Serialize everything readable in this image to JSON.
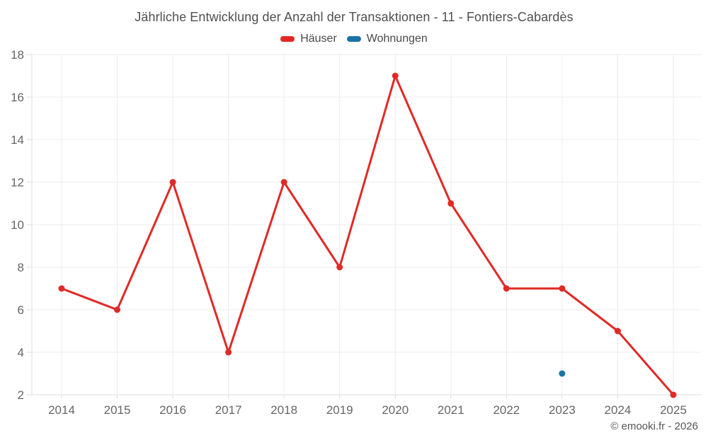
{
  "title": "Jährliche Entwicklung der Anzahl der Transaktionen - 11 - Fontiers-Cabardès",
  "legend": [
    {
      "label": "Häuser",
      "color": "#e02a26"
    },
    {
      "label": "Wohnungen",
      "color": "#1a73a5"
    }
  ],
  "footer": {
    "copyright": "© emooki.fr - 2026"
  },
  "colors": {
    "grid": "#ececec",
    "axis": "#dddddd",
    "tick_label": "#666666"
  },
  "chart_data": {
    "type": "line",
    "title": "Jährliche Entwicklung der Anzahl der Transaktionen - 11 - Fontiers-Cabardès",
    "x": [
      2014,
      2015,
      2016,
      2017,
      2018,
      2019,
      2020,
      2021,
      2022,
      2023,
      2024,
      2025
    ],
    "series": [
      {
        "name": "Häuser",
        "color": "#e02a26",
        "values": [
          7,
          6,
          12,
          4,
          12,
          8,
          17,
          11,
          7,
          7,
          5,
          2
        ]
      },
      {
        "name": "Wohnungen",
        "color": "#1a73a5",
        "values": [
          null,
          null,
          null,
          null,
          null,
          null,
          null,
          null,
          null,
          3,
          null,
          null
        ]
      }
    ],
    "xlabel": "",
    "ylabel": "",
    "ylim": [
      2,
      18
    ],
    "yticks": [
      2,
      4,
      6,
      8,
      10,
      12,
      14,
      16,
      18
    ],
    "grid": true,
    "legend_position": "top"
  }
}
